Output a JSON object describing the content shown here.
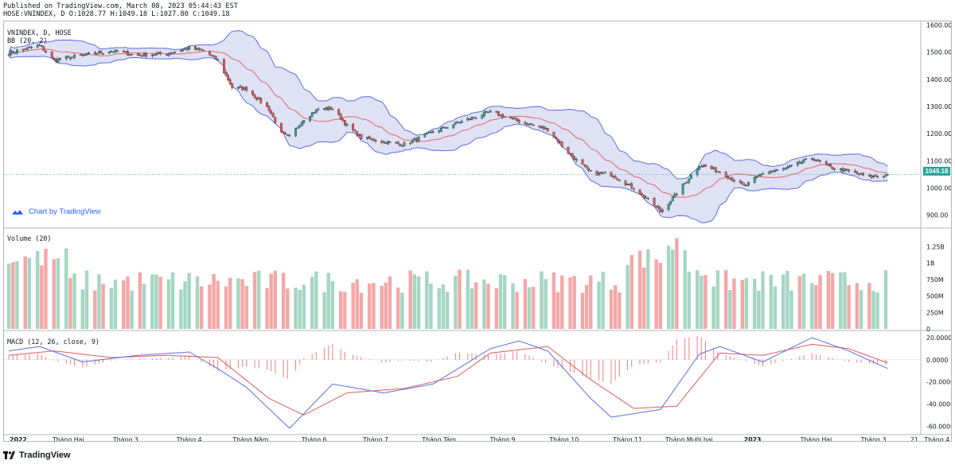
{
  "header": {
    "published_line": "Published on TradingView.com, March 08, 2023 05:44:43 EST",
    "symbol_line": "HOSE:VNINDEX, D O:1028.77 H:1049.18 L:1027.80 C:1049.18"
  },
  "panes": {
    "price_title": "VNINDEX, D, HOSE",
    "bb_label": "BB (20, 2)",
    "volume_label": "Volume (20)",
    "macd_label": "MACD (12, 26, close, 9)",
    "last_price_tag": "1049.18"
  },
  "badge": {
    "text": "Chart by TradingView"
  },
  "footer": {
    "brand": "TradingView"
  },
  "colors": {
    "up": "#26a69a",
    "down": "#ef5350",
    "band_fill": "#d1d4f0",
    "band_line": "#5b6ee1",
    "basis": "#e05a5a",
    "macd": "#5b6ee1",
    "signal": "#e05a5a",
    "vol_up": "#a5d6c2",
    "vol_down": "#f4a7a7"
  },
  "chart_data": [
    {
      "type": "candlestick",
      "title": "VNINDEX, D, HOSE",
      "indicator": "BB (20, 2)",
      "x_ticks": [
        "2022",
        "Tháng Hai",
        "Tháng 3",
        "Tháng 4",
        "Tháng Năm",
        "Tháng 6",
        "Tháng 7",
        "Tháng Tám",
        "Tháng 9",
        "Tháng 10",
        "Tháng 11",
        "Tháng Mười hai",
        "2023",
        "Tháng Hai",
        "Tháng 3",
        "Tháng 4",
        "21"
      ],
      "y_ticks": [
        1600,
        1500,
        1400,
        1300,
        1200,
        1100,
        1000,
        900
      ],
      "y_tick_labels": [
        "1600.00",
        "1500.00",
        "1400.00",
        "1300.00",
        "1200.00",
        "1100.00",
        "1000.00",
        "900.00"
      ],
      "ylim": [
        855,
        1610
      ],
      "last_close": 1049.18,
      "close_path": [
        {
          "m": "2022-01-03",
          "v": 1498
        },
        {
          "m": "2022-01-10",
          "v": 1510
        },
        {
          "m": "2022-01-18",
          "v": 1525
        },
        {
          "m": "2022-01-25",
          "v": 1470
        },
        {
          "m": "2022-02-08",
          "v": 1488
        },
        {
          "m": "2022-02-22",
          "v": 1505
        },
        {
          "m": "2022-03-07",
          "v": 1488
        },
        {
          "m": "2022-03-21",
          "v": 1495
        },
        {
          "m": "2022-04-01",
          "v": 1515
        },
        {
          "m": "2022-04-08",
          "v": 1505
        },
        {
          "m": "2022-04-15",
          "v": 1470
        },
        {
          "m": "2022-04-22",
          "v": 1370
        },
        {
          "m": "2022-04-29",
          "v": 1365
        },
        {
          "m": "2022-05-10",
          "v": 1290
        },
        {
          "m": "2022-05-16",
          "v": 1200
        },
        {
          "m": "2022-05-20",
          "v": 1185
        },
        {
          "m": "2022-05-27",
          "v": 1255
        },
        {
          "m": "2022-06-03",
          "v": 1290
        },
        {
          "m": "2022-06-10",
          "v": 1292
        },
        {
          "m": "2022-06-17",
          "v": 1230
        },
        {
          "m": "2022-06-24",
          "v": 1185
        },
        {
          "m": "2022-07-05",
          "v": 1170
        },
        {
          "m": "2022-07-15",
          "v": 1160
        },
        {
          "m": "2022-07-29",
          "v": 1205
        },
        {
          "m": "2022-08-10",
          "v": 1240
        },
        {
          "m": "2022-08-26",
          "v": 1280
        },
        {
          "m": "2022-09-09",
          "v": 1245
        },
        {
          "m": "2022-09-23",
          "v": 1215
        },
        {
          "m": "2022-10-03",
          "v": 1130
        },
        {
          "m": "2022-10-14",
          "v": 1055
        },
        {
          "m": "2022-10-24",
          "v": 1050
        },
        {
          "m": "2022-11-04",
          "v": 1000
        },
        {
          "m": "2022-11-15",
          "v": 930
        },
        {
          "m": "2022-11-17",
          "v": 912
        },
        {
          "m": "2022-11-25",
          "v": 980
        },
        {
          "m": "2022-12-06",
          "v": 1085
        },
        {
          "m": "2022-12-16",
          "v": 1060
        },
        {
          "m": "2022-12-28",
          "v": 1005
        },
        {
          "m": "2023-01-06",
          "v": 1055
        },
        {
          "m": "2023-01-17",
          "v": 1070
        },
        {
          "m": "2023-01-30",
          "v": 1110
        },
        {
          "m": "2023-02-08",
          "v": 1075
        },
        {
          "m": "2023-02-17",
          "v": 1060
        },
        {
          "m": "2023-02-27",
          "v": 1040
        },
        {
          "m": "2023-03-08",
          "v": 1049.18
        }
      ]
    },
    {
      "type": "bar",
      "title": "Volume (20)",
      "y_tick_labels": [
        "1.25B",
        "1B",
        "750M",
        "500M",
        "250M",
        "0"
      ],
      "ylim": [
        0,
        1.4
      ],
      "units": "billions"
    },
    {
      "type": "line",
      "title": "MACD (12, 26, close, 9)",
      "series": [
        {
          "name": "MACD"
        },
        {
          "name": "Signal"
        }
      ],
      "y_tick_labels": [
        "20.0000",
        "0.0000",
        "-20.0000",
        "-40.0000",
        "-60.0000"
      ],
      "ylim": [
        -67,
        25
      ],
      "macd_path": [
        {
          "m": "2022-01-03",
          "v": 8
        },
        {
          "m": "2022-01-18",
          "v": 12
        },
        {
          "m": "2022-02-08",
          "v": -2
        },
        {
          "m": "2022-03-07",
          "v": 4
        },
        {
          "m": "2022-04-01",
          "v": 7
        },
        {
          "m": "2022-04-15",
          "v": -8
        },
        {
          "m": "2022-04-29",
          "v": -25
        },
        {
          "m": "2022-05-20",
          "v": -62
        },
        {
          "m": "2022-06-10",
          "v": -22
        },
        {
          "m": "2022-07-05",
          "v": -30
        },
        {
          "m": "2022-07-29",
          "v": -22
        },
        {
          "m": "2022-08-26",
          "v": 10
        },
        {
          "m": "2022-09-09",
          "v": 17
        },
        {
          "m": "2022-09-23",
          "v": 8
        },
        {
          "m": "2022-10-14",
          "v": -35
        },
        {
          "m": "2022-10-24",
          "v": -52
        },
        {
          "m": "2022-11-17",
          "v": -45
        },
        {
          "m": "2022-12-06",
          "v": 5
        },
        {
          "m": "2022-12-16",
          "v": 12
        },
        {
          "m": "2023-01-06",
          "v": -2
        },
        {
          "m": "2023-01-30",
          "v": 20
        },
        {
          "m": "2023-02-17",
          "v": 8
        },
        {
          "m": "2023-03-08",
          "v": -8
        }
      ],
      "signal_path": [
        {
          "m": "2022-01-03",
          "v": 4
        },
        {
          "m": "2022-01-25",
          "v": 8
        },
        {
          "m": "2022-02-22",
          "v": 2
        },
        {
          "m": "2022-03-21",
          "v": 4
        },
        {
          "m": "2022-04-15",
          "v": 2
        },
        {
          "m": "2022-05-10",
          "v": -35
        },
        {
          "m": "2022-05-27",
          "v": -50
        },
        {
          "m": "2022-06-17",
          "v": -30
        },
        {
          "m": "2022-07-15",
          "v": -26
        },
        {
          "m": "2022-08-10",
          "v": -15
        },
        {
          "m": "2022-08-26",
          "v": 6
        },
        {
          "m": "2022-09-23",
          "v": 12
        },
        {
          "m": "2022-10-14",
          "v": -18
        },
        {
          "m": "2022-11-04",
          "v": -44
        },
        {
          "m": "2022-11-25",
          "v": -42
        },
        {
          "m": "2022-12-16",
          "v": 6
        },
        {
          "m": "2023-01-06",
          "v": 4
        },
        {
          "m": "2023-01-30",
          "v": 14
        },
        {
          "m": "2023-02-17",
          "v": 10
        },
        {
          "m": "2023-03-08",
          "v": -3
        }
      ]
    }
  ]
}
